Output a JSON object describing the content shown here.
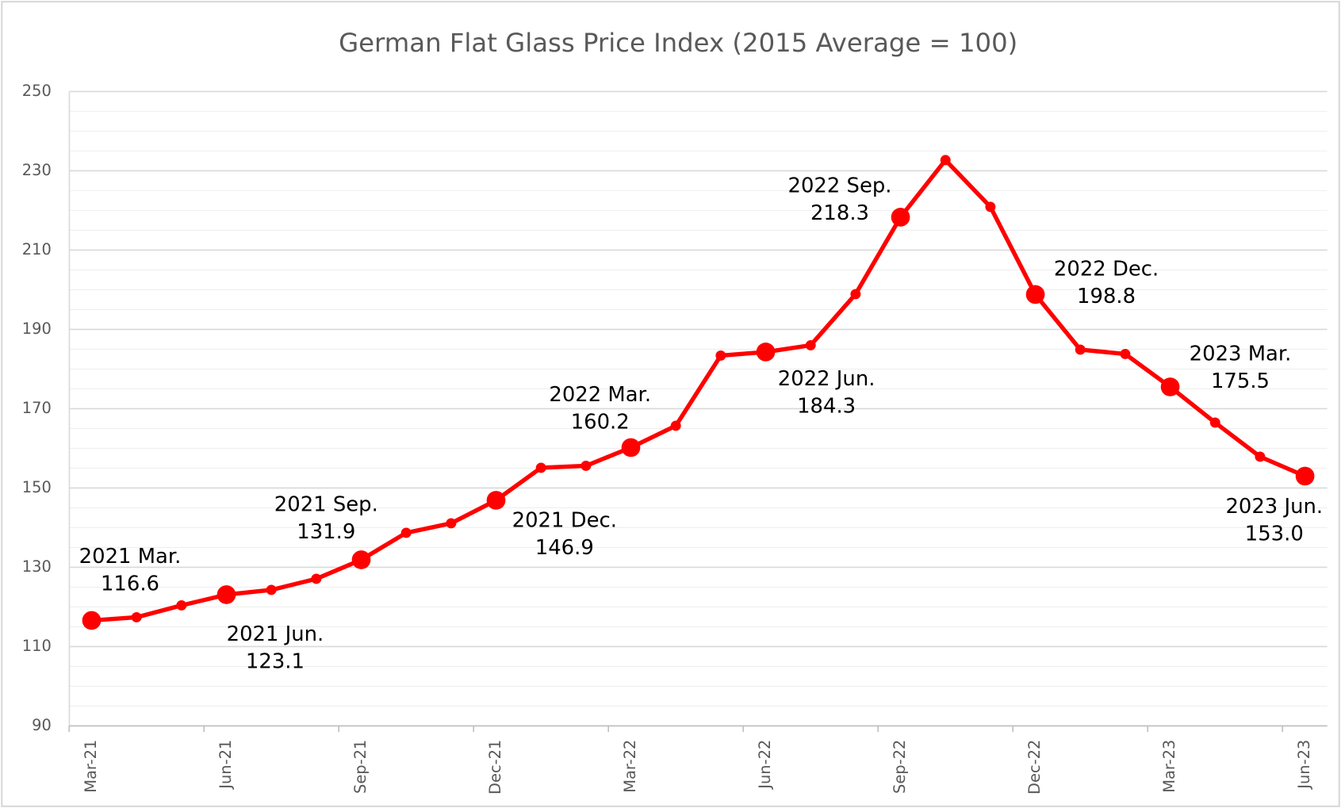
{
  "chart_data": {
    "type": "line",
    "title": "German Flat Glass Price Index (2015 Average = 100)",
    "categories": [
      "Mar-21",
      null,
      null,
      "Jun-21",
      null,
      null,
      "Sep-21",
      null,
      null,
      "Dec-21",
      null,
      null,
      "Mar-22",
      null,
      null,
      "Jun-22",
      null,
      null,
      "Sep-22",
      null,
      null,
      "Dec-22",
      null,
      null,
      "Mar-23",
      null,
      null,
      "Jun-23"
    ],
    "series": [
      {
        "color": "#ff0000",
        "values": [
          116.6,
          117.4,
          120.4,
          123.1,
          124.3,
          127.1,
          131.9,
          138.7,
          141.1,
          146.9,
          155.1,
          155.6,
          160.2,
          165.7,
          183.4,
          184.3,
          186.0,
          198.9,
          218.3,
          232.7,
          220.9,
          198.8,
          184.9,
          183.8,
          175.5,
          166.5,
          157.9,
          153.0
        ],
        "value_labels": [
          "116.6",
          null,
          null,
          "123.1",
          null,
          null,
          "131.9",
          null,
          null,
          "146.9",
          null,
          null,
          "160.2",
          null,
          null,
          "184.3",
          null,
          null,
          "218.3",
          null,
          null,
          "198.8",
          null,
          null,
          "175.5",
          null,
          null,
          "153.0"
        ],
        "point_label_names": [
          "2021 Mar.",
          null,
          null,
          "2021 Jun.",
          null,
          null,
          "2021 Sep.",
          null,
          null,
          "2021 Dec.",
          null,
          null,
          "2022 Mar.",
          null,
          null,
          "2022 Jun.",
          null,
          null,
          "2022 Sep.",
          null,
          null,
          "2022 Dec.",
          null,
          null,
          "2023 Mar.",
          null,
          null,
          "2023 Jun."
        ]
      }
    ],
    "ylim": [
      90,
      250
    ],
    "yticks": [
      90,
      110,
      130,
      150,
      170,
      190,
      210,
      230,
      250
    ],
    "grid": true,
    "minor_grid": 4
  }
}
